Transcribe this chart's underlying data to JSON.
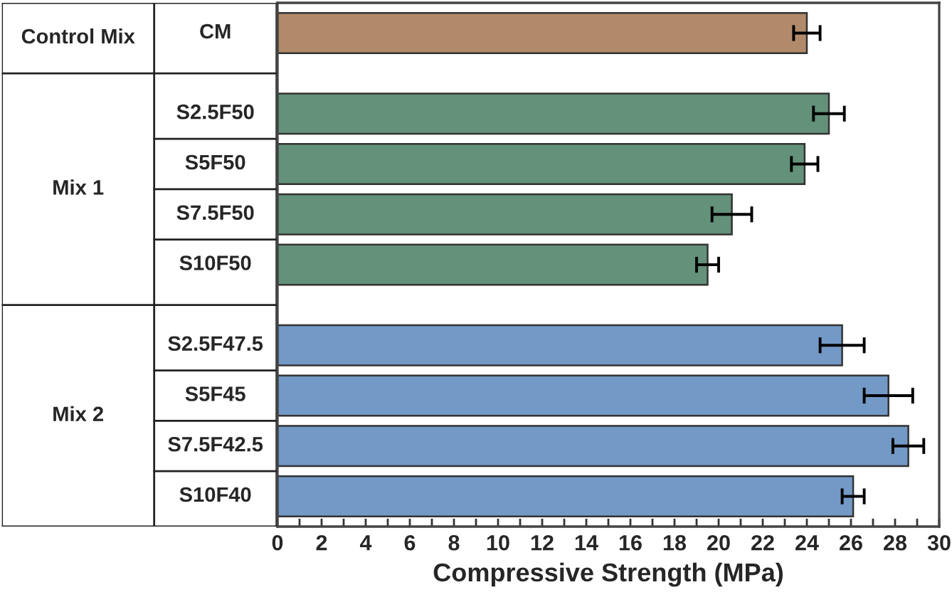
{
  "chart_data": {
    "type": "bar",
    "orientation": "horizontal",
    "xlabel": "Compressive Strength (MPa)",
    "categories": [
      "CM",
      "S2.5F50",
      "S5F50",
      "S7.5F50",
      "S10F50",
      "S2.5F47.5",
      "S5F45",
      "S7.5F42.5",
      "S10F40"
    ],
    "values": [
      24.0,
      25.0,
      23.9,
      20.6,
      19.5,
      25.6,
      27.7,
      28.6,
      26.1
    ],
    "errors": [
      0.6,
      0.7,
      0.6,
      0.9,
      0.5,
      1.0,
      1.1,
      0.7,
      0.5
    ],
    "colors": [
      "#b08a6a",
      "#64917a",
      "#64917a",
      "#64917a",
      "#64917a",
      "#7399c6",
      "#7399c6",
      "#7399c6",
      "#7399c6"
    ],
    "annotations": [
      "Control Mix",
      "Mix 1",
      "Mix 2"
    ],
    "xlim": [
      0,
      30
    ],
    "xticks": [
      0,
      {
        "value": 1,
        "label": null
      },
      2,
      {
        "value": 3,
        "label": null
      },
      4,
      {
        "value": 5,
        "label": null
      },
      6,
      {
        "value": 7,
        "label": null
      },
      8,
      {
        "value": 9,
        "label": null
      },
      10,
      {
        "value": 11,
        "label": null
      },
      12,
      {
        "value": 13,
        "label": null
      },
      14,
      {
        "value": 15,
        "label": null
      },
      16,
      {
        "value": 17,
        "label": null
      },
      18,
      {
        "value": 19,
        "label": null
      },
      20,
      {
        "value": 21,
        "label": null
      },
      22,
      {
        "value": 23,
        "label": null
      },
      24,
      {
        "value": 25,
        "label": null
      },
      26,
      {
        "value": 27,
        "label": null
      },
      28,
      {
        "value": 29,
        "label": null
      },
      30
    ],
    "grid": false
  }
}
